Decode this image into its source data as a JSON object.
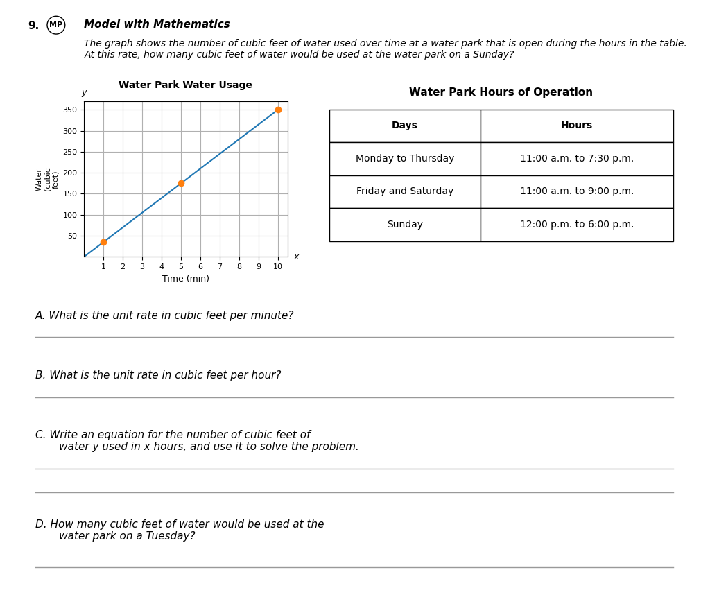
{
  "chart_data": {
    "type": "line",
    "title": "Water Park Water Usage",
    "x_label": "Time (min)",
    "y_label": "Water\n(cubic\nfeet)",
    "series": [
      {
        "type": "line",
        "x": [
          0,
          1,
          5,
          10
        ],
        "values": [
          0,
          35,
          175,
          350
        ]
      },
      {
        "type": "scatter",
        "x": [
          1,
          5,
          10
        ],
        "values": [
          35,
          175,
          350
        ]
      }
    ],
    "xlim": [
      0,
      10.5
    ],
    "ylim": [
      0,
      370
    ],
    "xticks": [
      1,
      2,
      3,
      4,
      5,
      6,
      7,
      8,
      9,
      10
    ],
    "yticks": [
      50,
      100,
      150,
      200,
      250,
      300,
      350
    ],
    "grid": true,
    "annotations": {
      "number": "9.",
      "badge": "MP",
      "heading": "Model with Mathematics",
      "problem": "The graph shows the number of cubic feet of water used over time at a water park that is open during the hours in the table. At this rate, how many cubic feet of water would be used at the water park on a Sunday?",
      "x_axis_letter": "x",
      "y_axis_letter": "y",
      "questions": [
        "A. What is the unit rate in cubic feet per minute?",
        "B. What is the unit rate in cubic feet per hour?",
        "C. Write an equation for the number of cubic feet of\n       water y used in x hours, and use it to solve the problem.",
        "D. How many cubic feet of water would be used at the\n       water park on a Tuesday?"
      ]
    },
    "table": {
      "title": "Water Park Hours of Operation",
      "columns": [
        "Days",
        "Hours"
      ],
      "rows": [
        [
          "Monday to Thursday",
          "11:00 a.m. to 7:30 p.m."
        ],
        [
          "Friday and Saturday",
          "11:00 a.m. to 9:00 p.m."
        ],
        [
          "Sunday",
          "12:00 p.m. to 6:00 p.m."
        ]
      ]
    }
  }
}
